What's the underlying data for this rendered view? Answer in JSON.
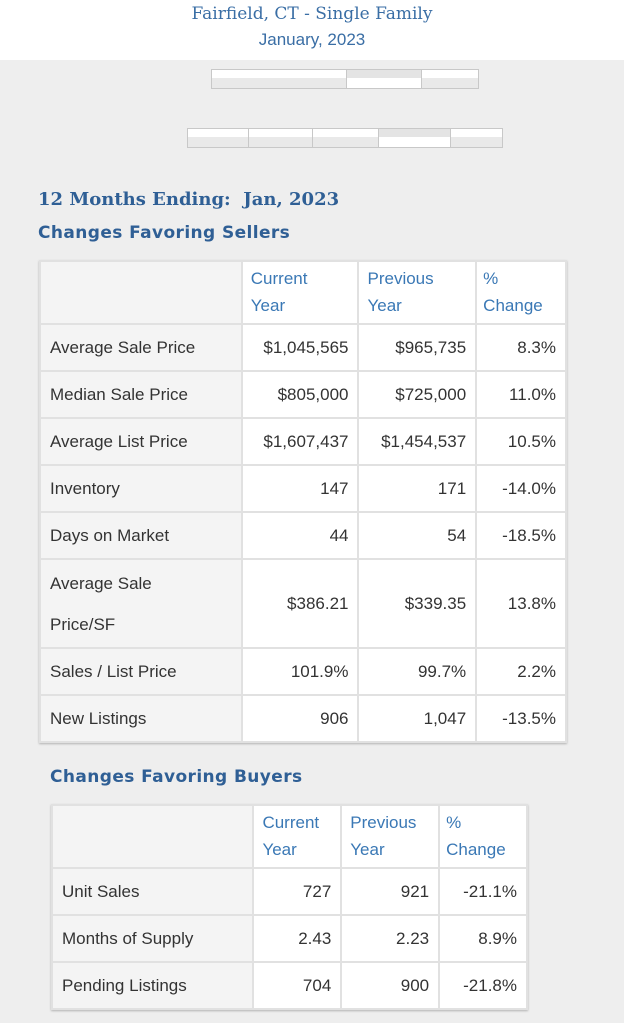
{
  "header": {
    "title": "Fairfield, CT - Single Family",
    "subtitle": "January, 2023"
  },
  "tab_bar_1": {
    "segments": 3,
    "selected_index": 1
  },
  "tab_bar_2": {
    "segments": 5,
    "selected_index": 3
  },
  "period_label": "12 Months Ending:  Jan, 2023",
  "sellers": {
    "title": "Changes Favoring Sellers",
    "headers": {
      "current": [
        "Current",
        "Year"
      ],
      "previous": [
        "Previous",
        "Year"
      ],
      "change": [
        "%",
        "Change"
      ]
    },
    "rows": [
      {
        "label": "Average Sale Price",
        "current": "$1,045,565",
        "previous": "$965,735",
        "change": "8.3%"
      },
      {
        "label": "Median Sale Price",
        "current": "$805,000",
        "previous": "$725,000",
        "change": "11.0%"
      },
      {
        "label": "Average List Price",
        "current": "$1,607,437",
        "previous": "$1,454,537",
        "change": "10.5%"
      },
      {
        "label": "Inventory",
        "current": "147",
        "previous": "171",
        "change": "-14.0%"
      },
      {
        "label": "Days on Market",
        "current": "44",
        "previous": "54",
        "change": "-18.5%"
      },
      {
        "label": "Average Sale Price/SF",
        "current": "$386.21",
        "previous": "$339.35",
        "change": "13.8%"
      },
      {
        "label": "Sales / List Price",
        "current": "101.9%",
        "previous": "99.7%",
        "change": "2.2%"
      },
      {
        "label": "New Listings",
        "current": "906",
        "previous": "1,047",
        "change": "-13.5%"
      }
    ]
  },
  "buyers": {
    "title": "Changes Favoring Buyers",
    "headers": {
      "current": [
        "Current",
        "Year"
      ],
      "previous": [
        "Previous",
        "Year"
      ],
      "change": [
        "%",
        "Change"
      ]
    },
    "rows": [
      {
        "label": "Unit Sales",
        "current": "727",
        "previous": "921",
        "change": "-21.1%"
      },
      {
        "label": "Months of Supply",
        "current": "2.43",
        "previous": "2.23",
        "change": "8.9%"
      },
      {
        "label": "Pending Listings",
        "current": "704",
        "previous": "900",
        "change": "-21.8%"
      }
    ]
  },
  "colors": {
    "accent": "#2f5f95",
    "header_text": "#3a78b5",
    "background": "#eeeeee"
  }
}
